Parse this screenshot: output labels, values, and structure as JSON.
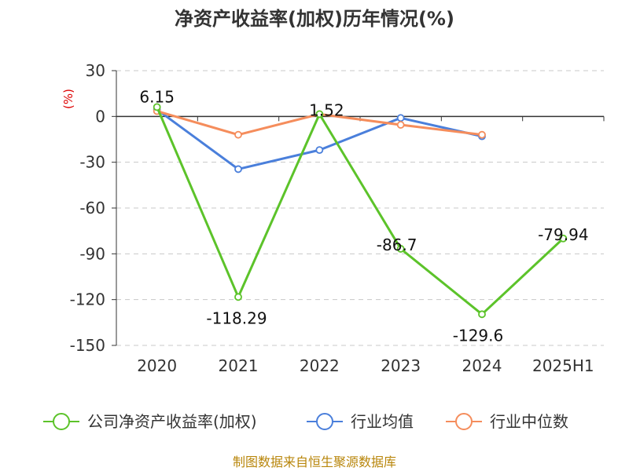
{
  "chart_data": {
    "type": "line",
    "title": "净资产收益率(加权)历年情况(%)",
    "ylabel": "(%)",
    "categories": [
      "2020",
      "2021",
      "2022",
      "2023",
      "2024",
      "2025H1"
    ],
    "ylim": [
      -150,
      30
    ],
    "yticks": [
      30,
      0,
      -30,
      -60,
      -90,
      -120,
      -150
    ],
    "grid": true,
    "legend_position": "bottom",
    "series": [
      {
        "name": "公司净资产收益率(加权)",
        "color": "#5cc32a",
        "values": [
          6.15,
          -118.29,
          1.52,
          -86.7,
          -129.6,
          -79.94
        ],
        "labels": [
          "6.15",
          "-118.29",
          "1.52",
          "-86.7",
          "-129.6",
          "-79.94"
        ]
      },
      {
        "name": "行业均值",
        "color": "#4a7fdb",
        "values": [
          4.5,
          -34.5,
          -22,
          -1,
          -13,
          null
        ]
      },
      {
        "name": "行业中位数",
        "color": "#f58d5c",
        "values": [
          3.5,
          -12,
          1.5,
          -5.5,
          -12,
          null
        ]
      }
    ]
  },
  "source": "制图数据来自恒生聚源数据库"
}
